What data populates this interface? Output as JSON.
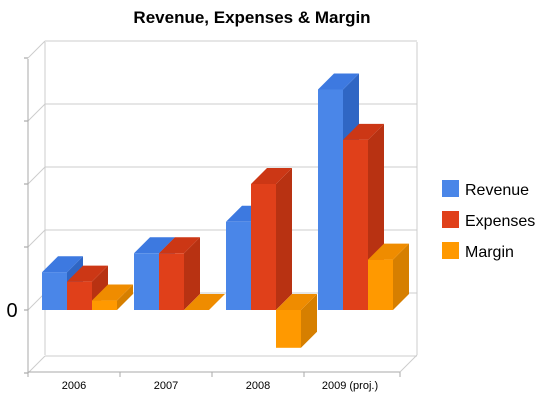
{
  "chart_data": {
    "type": "bar",
    "title": "Revenue, Expenses & Margin",
    "categories": [
      "2006",
      "2007",
      "2008",
      "2009 (proj.)"
    ],
    "series": [
      {
        "name": "Revenue",
        "values": [
          60,
          90,
          140,
          350
        ],
        "color": "#4a86e8",
        "side": "#2f66c4",
        "top": "#3d79e0"
      },
      {
        "name": "Expenses",
        "values": [
          45,
          90,
          200,
          270
        ],
        "color": "#e0401a",
        "side": "#b83212",
        "top": "#cc3715"
      },
      {
        "name": "Margin",
        "values": [
          15,
          0,
          -60,
          80
        ],
        "color": "#ff9900",
        "side": "#d67f00",
        "top": "#ef8c00"
      }
    ],
    "y_tick_labels": [
      "0"
    ],
    "grid": true,
    "legend_position": "right"
  }
}
